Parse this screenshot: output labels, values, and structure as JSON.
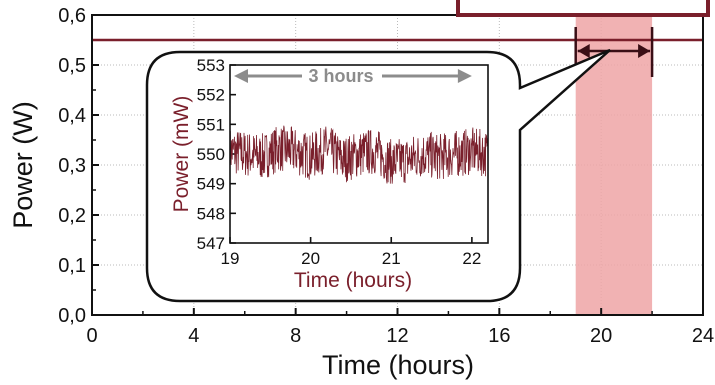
{
  "chart_data": [
    {
      "type": "line",
      "xlabel": "Time (hours)",
      "ylabel": "Power (W)",
      "xlim": [
        0,
        24
      ],
      "ylim": [
        0.0,
        0.6
      ],
      "xticks": [
        "0",
        "4",
        "8",
        "12",
        "16",
        "20",
        "24"
      ],
      "yticks": [
        "0,0",
        "0,1",
        "0,2",
        "0,3",
        "0,4",
        "0,5",
        "0,6"
      ],
      "grid": true,
      "series": [
        {
          "x": [
            0,
            2,
            4,
            6,
            8,
            10,
            12,
            14,
            16,
            18,
            20,
            22,
            24
          ],
          "y": [
            0.55,
            0.55,
            0.55,
            0.55,
            0.55,
            0.55,
            0.55,
            0.55,
            0.55,
            0.55,
            0.55,
            0.55,
            0.55
          ]
        }
      ],
      "highlight_range": [
        19,
        22
      ],
      "colors": {
        "line": "#7a1f2b",
        "highlight": "#eea4a6",
        "arrow": "#3a0f16"
      }
    },
    {
      "type": "line",
      "xlabel": "Time (hours)",
      "ylabel": "Power (mW)",
      "xlim": [
        19,
        22.2
      ],
      "ylim": [
        547,
        553
      ],
      "xticks": [
        "19",
        "20",
        "21",
        "22"
      ],
      "yticks": [
        "547",
        "548",
        "549",
        "550",
        "551",
        "552",
        "553"
      ],
      "annotation": "3 hours",
      "series": [
        {
          "x": [
            19.0,
            19.2,
            19.4,
            19.6,
            19.8,
            20.0,
            20.2,
            20.4,
            20.6,
            20.8,
            21.0,
            21.2,
            21.4,
            21.6,
            21.8,
            22.0,
            22.2
          ],
          "y": [
            550.1,
            550.0,
            549.9,
            550.2,
            550.1,
            549.9,
            550.2,
            549.8,
            550.0,
            550.1,
            549.7,
            549.8,
            550.0,
            549.9,
            550.0,
            550.1,
            550.0
          ],
          "noise_band": [
            549.0,
            551.1
          ]
        }
      ],
      "colors": {
        "line": "#7a1f2b",
        "annotation": "#8c8c8c"
      }
    }
  ]
}
